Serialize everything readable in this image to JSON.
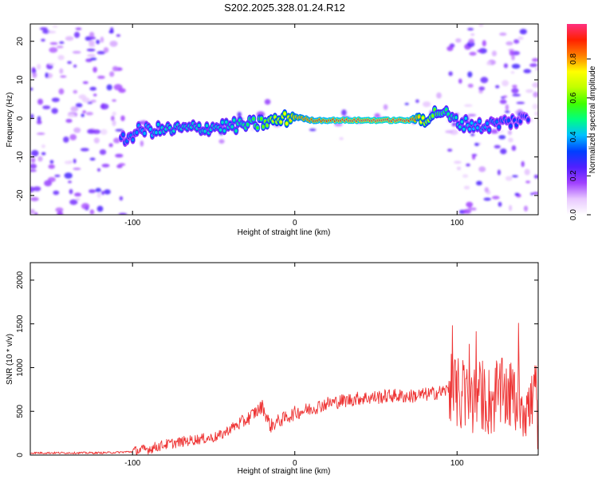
{
  "figure_title": "S202.2025.328.01.24.R12",
  "chart_data": [
    {
      "type": "heatmap",
      "title": "S202.2025.328.01.24.R12",
      "xlabel": "Height of straight line (km)",
      "ylabel": "Frequency (Hz)",
      "xlim": [
        -163,
        150
      ],
      "ylim": [
        -25,
        24.5
      ],
      "xticks": [
        -100,
        0,
        100
      ],
      "yticks": [
        -20,
        -10,
        0,
        10,
        20
      ],
      "colorbar": {
        "label": "Normalized spectral amplitude",
        "range": [
          0,
          0.98
        ],
        "ticks": [
          0.0,
          0.2,
          0.4,
          0.6,
          0.8
        ],
        "tick_labels": [
          "0.0",
          "0.2",
          "0.4",
          "0.6",
          "0.8"
        ],
        "colormap": [
          "#ffffff",
          "#e8c8ff",
          "#a040ff",
          "#5020ff",
          "#0040ff",
          "#00c0ff",
          "#00ff80",
          "#40ff00",
          "#c0ff00",
          "#ffff00",
          "#ff8000",
          "#ff2000",
          "#ff3080"
        ]
      },
      "ridge": [
        {
          "x": -107,
          "f": -6,
          "amp": 0.35
        },
        {
          "x": -95,
          "f": -3,
          "amp": 0.4
        },
        {
          "x": -80,
          "f": -3,
          "amp": 0.45
        },
        {
          "x": -60,
          "f": -2.5,
          "amp": 0.45
        },
        {
          "x": -40,
          "f": -2,
          "amp": 0.45
        },
        {
          "x": -25,
          "f": -1.5,
          "amp": 0.55
        },
        {
          "x": -10,
          "f": -0.5,
          "amp": 0.7
        },
        {
          "x": 0,
          "f": 0.5,
          "amp": 0.8
        },
        {
          "x": 10,
          "f": -0.5,
          "amp": 0.88
        },
        {
          "x": 30,
          "f": -0.5,
          "amp": 0.95
        },
        {
          "x": 50,
          "f": -0.5,
          "amp": 0.97
        },
        {
          "x": 70,
          "f": -0.5,
          "amp": 0.95
        },
        {
          "x": 80,
          "f": 0,
          "amp": 0.7
        },
        {
          "x": 90,
          "f": 2,
          "amp": 0.55
        },
        {
          "x": 100,
          "f": -1,
          "amp": 0.45
        },
        {
          "x": 115,
          "f": -2,
          "amp": 0.4
        },
        {
          "x": 130,
          "f": -1,
          "amp": 0.35
        },
        {
          "x": 145,
          "f": 0,
          "amp": 0.3
        }
      ]
    },
    {
      "type": "line",
      "xlabel": "Height of straight line (km)",
      "ylabel": "SNR (10 * v/v)",
      "xlim": [
        -163,
        150
      ],
      "ylim": [
        0,
        2200
      ],
      "xticks": [
        -100,
        0,
        100
      ],
      "yticks": [
        0,
        500,
        1000,
        1500,
        2000
      ],
      "color": "#ee3333",
      "series": [
        {
          "name": "SNR",
          "x": [
            -163,
            -140,
            -120,
            -110,
            -100,
            -90,
            -80,
            -70,
            -60,
            -50,
            -45,
            -40,
            -35,
            -30,
            -25,
            -22,
            -20,
            -15,
            -10,
            -5,
            0,
            10,
            20,
            30,
            40,
            50,
            60,
            70,
            80,
            90,
            95,
            100,
            105,
            110,
            115,
            120,
            125,
            130,
            135,
            140,
            145,
            148,
            150
          ],
          "y": [
            25,
            25,
            25,
            30,
            40,
            70,
            120,
            150,
            180,
            200,
            230,
            300,
            350,
            400,
            480,
            520,
            560,
            330,
            390,
            430,
            480,
            530,
            590,
            620,
            650,
            660,
            680,
            670,
            690,
            720,
            750,
            700,
            650,
            620,
            700,
            600,
            680,
            700,
            650,
            620,
            500,
            800,
            380
          ]
        }
      ]
    }
  ]
}
